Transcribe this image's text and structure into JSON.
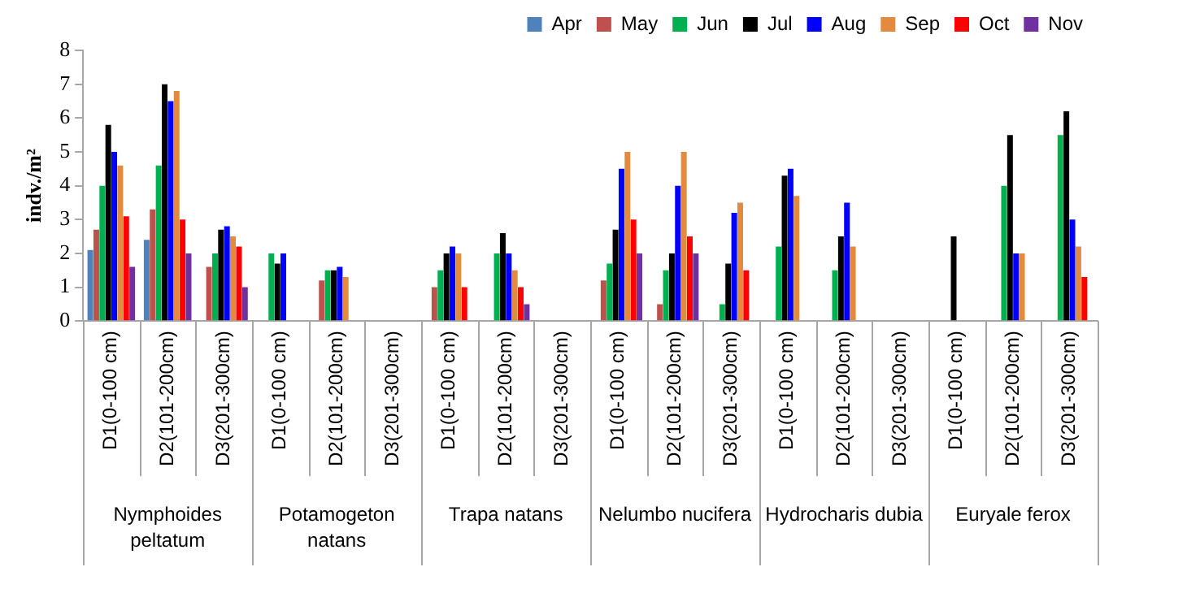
{
  "chart_data": {
    "type": "bar",
    "ylabel": "indv./m²",
    "categories": [
      "D1(0-100 cm)",
      "D2(101-200cm)",
      "D3(201-300cm)",
      "D1(0-100 cm)",
      "D2(101-200cm)",
      "D3(201-300cm)",
      "D1(0-100 cm)",
      "D2(101-200cm)",
      "D3(201-300cm)",
      "D1(0-100 cm)",
      "D2(101-200cm)",
      "D3(201-300cm)",
      "D1(0-100 cm)",
      "D2(101-200cm)",
      "D3(201-300cm)",
      "D1(0-100 cm)",
      "D2(101-200cm)",
      "D3(201-300cm)"
    ],
    "annotations": [
      "Nymphoides peltatum",
      "Potamogeton natans",
      "Trapa natans",
      "Nelumbo nucifera",
      "Hydrocharis dubia",
      "Euryale ferox"
    ],
    "series": [
      {
        "name": "Apr",
        "color": "#4f81bd",
        "values": [
          2.1,
          2.4,
          null,
          null,
          null,
          null,
          null,
          null,
          null,
          null,
          null,
          null,
          null,
          null,
          null,
          null,
          null,
          null
        ]
      },
      {
        "name": "May",
        "color": "#c0504d",
        "values": [
          2.7,
          3.3,
          1.6,
          null,
          1.2,
          null,
          1.0,
          null,
          null,
          1.2,
          0.5,
          null,
          null,
          null,
          null,
          null,
          null,
          null
        ]
      },
      {
        "name": "Jun",
        "color": "#00b050",
        "values": [
          4.0,
          4.6,
          2.0,
          2.0,
          1.5,
          null,
          1.5,
          2.0,
          null,
          1.7,
          1.5,
          0.5,
          2.2,
          1.5,
          null,
          null,
          4.0,
          5.5
        ]
      },
      {
        "name": "Jul",
        "color": "#000000",
        "values": [
          5.8,
          7.0,
          2.7,
          1.7,
          1.5,
          null,
          2.0,
          2.6,
          null,
          2.7,
          2.0,
          1.7,
          4.3,
          2.5,
          null,
          2.5,
          5.5,
          6.2
        ]
      },
      {
        "name": "Aug",
        "color": "#0000ff",
        "values": [
          5.0,
          6.5,
          2.8,
          2.0,
          1.6,
          null,
          2.2,
          2.0,
          null,
          4.5,
          4.0,
          3.2,
          4.5,
          3.5,
          null,
          null,
          2.0,
          3.0
        ]
      },
      {
        "name": "Sep",
        "color": "#e28a3e",
        "values": [
          4.6,
          6.8,
          2.5,
          null,
          1.3,
          null,
          2.0,
          1.5,
          null,
          5.0,
          5.0,
          3.5,
          3.7,
          2.2,
          null,
          null,
          2.0,
          2.2
        ]
      },
      {
        "name": "Oct",
        "color": "#ff0000",
        "values": [
          3.1,
          3.0,
          2.2,
          null,
          null,
          null,
          1.0,
          1.0,
          null,
          3.0,
          2.5,
          1.5,
          null,
          null,
          null,
          null,
          null,
          1.3
        ]
      },
      {
        "name": "Nov",
        "color": "#7030a0",
        "values": [
          1.6,
          2.0,
          1.0,
          null,
          null,
          null,
          null,
          0.5,
          null,
          2.0,
          2.0,
          null,
          null,
          null,
          null,
          null,
          null,
          null
        ]
      }
    ],
    "ylim": [
      0,
      8
    ],
    "yticks": [
      0,
      1,
      2,
      3,
      4,
      5,
      6,
      7,
      8
    ],
    "grid": false,
    "legend": "top right"
  }
}
